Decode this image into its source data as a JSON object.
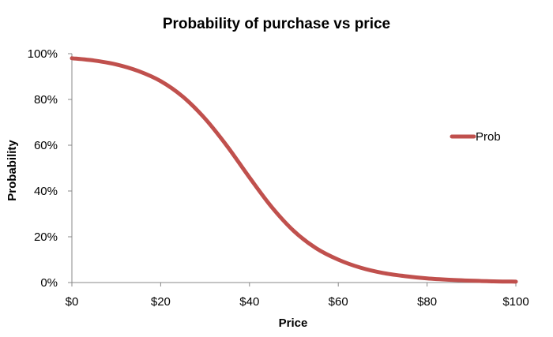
{
  "chart_data": {
    "type": "line",
    "title": "Probability of purchase vs price",
    "xlabel": "Price",
    "ylabel": "Probability",
    "xlim": [
      0,
      100
    ],
    "ylim": [
      0,
      100
    ],
    "x_ticks": [
      {
        "value": 0,
        "label": "$0"
      },
      {
        "value": 20,
        "label": "$20"
      },
      {
        "value": 40,
        "label": "$40"
      },
      {
        "value": 60,
        "label": "$60"
      },
      {
        "value": 80,
        "label": "$80"
      },
      {
        "value": 100,
        "label": "$100"
      }
    ],
    "y_ticks": [
      {
        "value": 0,
        "label": "0%"
      },
      {
        "value": 20,
        "label": "20%"
      },
      {
        "value": 40,
        "label": "40%"
      },
      {
        "value": 60,
        "label": "60%"
      },
      {
        "value": 80,
        "label": "80%"
      },
      {
        "value": 100,
        "label": "100%"
      }
    ],
    "grid": false,
    "legend_position": "right",
    "series": [
      {
        "name": "Prob",
        "color": "#c0504d",
        "x": [
          0,
          5,
          10,
          15,
          20,
          25,
          30,
          35,
          40,
          45,
          50,
          55,
          60,
          65,
          70,
          75,
          80,
          85,
          90,
          95,
          100
        ],
        "y": [
          98.0,
          97.0,
          95.3,
          92.4,
          88.0,
          81.2,
          71.6,
          59.5,
          45.9,
          33.0,
          22.5,
          15.0,
          10.0,
          6.5,
          4.2,
          2.8,
          1.8,
          1.2,
          0.8,
          0.5,
          0.4
        ]
      }
    ]
  }
}
